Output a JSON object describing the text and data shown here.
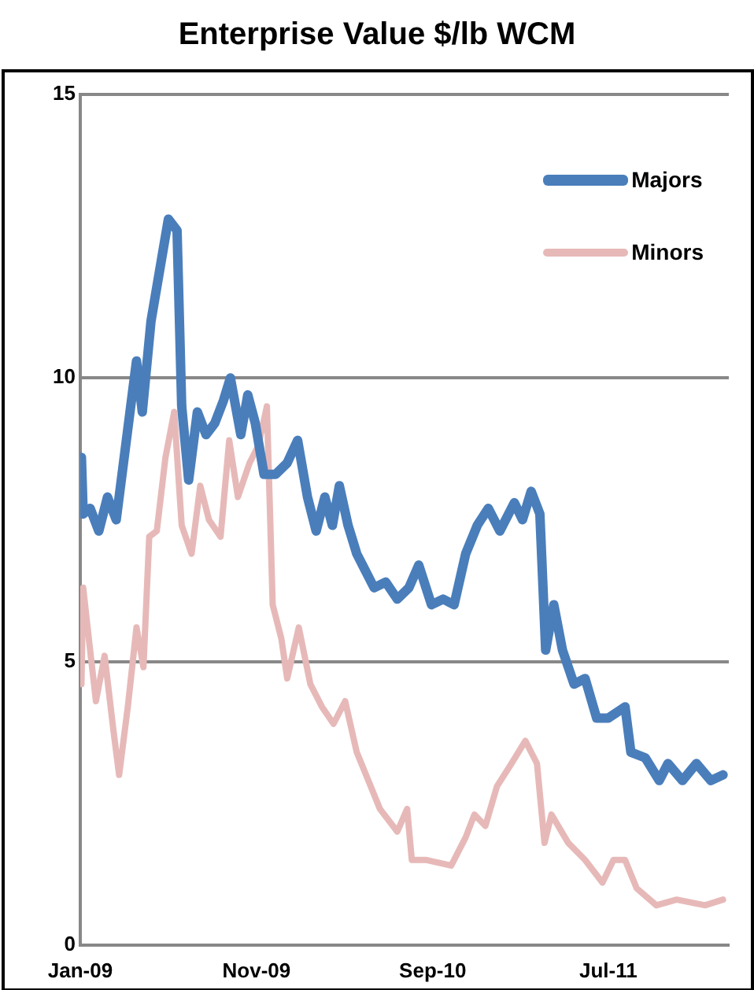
{
  "chart_data": {
    "type": "line",
    "title": "Enterprise Value $/lb WCM",
    "xlim": [
      "2009-01-01",
      "2012-01-25"
    ],
    "xticks": [
      {
        "value": "2009-01-01",
        "label": "Jan-09"
      },
      {
        "value": "2009-11-01",
        "label": "Nov-09"
      },
      {
        "value": "2010-09-01",
        "label": "Sep-10"
      },
      {
        "value": "2011-07-01",
        "label": "Jul-11"
      }
    ],
    "ylim": [
      0,
      15
    ],
    "yticks": [
      0,
      5,
      10,
      15
    ],
    "grid": "y",
    "legend": "top right",
    "marker": "none",
    "line_style": "solid",
    "series": [
      {
        "name": "Majors",
        "color": "#4a7ebb",
        "x": [
          "2009-01-03",
          "2009-01-06",
          "2009-01-18",
          "2009-02-02",
          "2009-02-17",
          "2009-03-04",
          "2009-03-19",
          "2009-04-08",
          "2009-04-18",
          "2009-05-03",
          "2009-05-18",
          "2009-06-02",
          "2009-06-17",
          "2009-06-25",
          "2009-07-07",
          "2009-07-22",
          "2009-08-06",
          "2009-08-21",
          "2009-09-05",
          "2009-09-17",
          "2009-10-05",
          "2009-10-17",
          "2009-10-30",
          "2009-11-14",
          "2009-12-04",
          "2009-12-24",
          "2010-01-11",
          "2010-01-28",
          "2010-02-12",
          "2010-02-27",
          "2010-03-12",
          "2010-03-24",
          "2010-04-08",
          "2010-04-23",
          "2010-05-08",
          "2010-05-23",
          "2010-06-12",
          "2010-07-02",
          "2010-07-22",
          "2010-08-08",
          "2010-08-30",
          "2010-09-19",
          "2010-10-08",
          "2010-10-28",
          "2010-11-17",
          "2010-12-06",
          "2010-12-26",
          "2011-01-20",
          "2011-02-03",
          "2011-02-18",
          "2011-03-05",
          "2011-03-15",
          "2011-03-29",
          "2011-04-13",
          "2011-05-03",
          "2011-05-22",
          "2011-06-11",
          "2011-07-01",
          "2011-07-30",
          "2011-08-09",
          "2011-09-03",
          "2011-09-27",
          "2011-10-12",
          "2011-11-06",
          "2011-11-30",
          "2011-12-25",
          "2012-01-15"
        ],
        "values": [
          8.6,
          7.6,
          7.7,
          7.3,
          7.9,
          7.5,
          8.7,
          10.3,
          9.4,
          11.0,
          11.9,
          12.8,
          12.6,
          9.5,
          8.2,
          9.4,
          9.0,
          9.2,
          9.6,
          10.0,
          9.0,
          9.7,
          9.2,
          8.3,
          8.3,
          8.5,
          8.9,
          7.9,
          7.3,
          7.9,
          7.4,
          8.1,
          7.4,
          6.9,
          6.6,
          6.3,
          6.4,
          6.1,
          6.3,
          6.7,
          6.0,
          6.1,
          6.0,
          6.9,
          7.4,
          7.7,
          7.3,
          7.8,
          7.5,
          8.0,
          7.6,
          5.2,
          6.0,
          5.2,
          4.6,
          4.7,
          4.0,
          4.0,
          4.2,
          3.4,
          3.3,
          2.9,
          3.2,
          2.9,
          3.2,
          2.9,
          3.0
        ]
      },
      {
        "name": "Minors",
        "color": "#e6b9b8",
        "x": [
          "2009-01-03",
          "2009-01-06",
          "2009-01-18",
          "2009-01-28",
          "2009-02-12",
          "2009-02-27",
          "2009-03-09",
          "2009-03-24",
          "2009-04-08",
          "2009-04-20",
          "2009-04-30",
          "2009-05-13",
          "2009-05-28",
          "2009-06-12",
          "2009-06-25",
          "2009-07-12",
          "2009-07-27",
          "2009-08-11",
          "2009-08-31",
          "2009-09-15",
          "2009-09-30",
          "2009-10-20",
          "2009-11-04",
          "2009-11-19",
          "2009-11-29",
          "2009-12-14",
          "2009-12-24",
          "2010-01-13",
          "2010-02-02",
          "2010-02-22",
          "2010-03-14",
          "2010-04-03",
          "2010-04-23",
          "2010-05-13",
          "2010-06-02",
          "2010-07-02",
          "2010-07-19",
          "2010-07-27",
          "2010-08-20",
          "2010-10-03",
          "2010-10-28",
          "2010-11-12",
          "2010-12-01",
          "2010-12-21",
          "2011-01-15",
          "2011-02-08",
          "2011-02-28",
          "2011-03-13",
          "2011-03-25",
          "2011-04-23",
          "2011-05-22",
          "2011-06-21",
          "2011-07-10",
          "2011-07-30",
          "2011-08-19",
          "2011-09-22",
          "2011-10-27",
          "2011-12-15",
          "2012-01-15"
        ],
        "values": [
          4.6,
          6.3,
          5.2,
          4.3,
          5.1,
          3.8,
          3.0,
          4.2,
          5.6,
          4.9,
          7.2,
          7.3,
          8.6,
          9.4,
          7.4,
          6.9,
          8.1,
          7.5,
          7.2,
          8.9,
          7.9,
          8.5,
          8.8,
          9.5,
          6.0,
          5.4,
          4.7,
          5.6,
          4.6,
          4.2,
          3.9,
          4.3,
          3.4,
          2.9,
          2.4,
          2.0,
          2.4,
          1.5,
          1.5,
          1.4,
          1.9,
          2.3,
          2.1,
          2.8,
          3.2,
          3.6,
          3.2,
          1.8,
          2.3,
          1.8,
          1.5,
          1.1,
          1.5,
          1.5,
          1.0,
          0.7,
          0.8,
          0.7,
          0.8
        ]
      }
    ]
  }
}
